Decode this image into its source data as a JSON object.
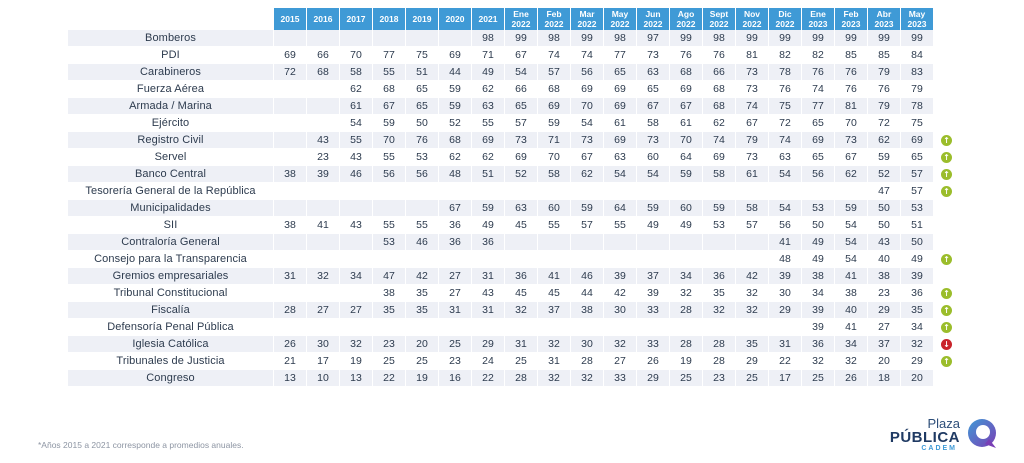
{
  "chart_data": {
    "type": "table",
    "columns": [
      [
        "2015"
      ],
      [
        "2016"
      ],
      [
        "2017"
      ],
      [
        "2018"
      ],
      [
        "2019"
      ],
      [
        "2020"
      ],
      [
        "2021"
      ],
      [
        "Ene",
        "2022"
      ],
      [
        "Feb",
        "2022"
      ],
      [
        "Mar",
        "2022"
      ],
      [
        "May",
        "2022"
      ],
      [
        "Jun",
        "2022"
      ],
      [
        "Ago",
        "2022"
      ],
      [
        "Sept",
        "2022"
      ],
      [
        "Nov",
        "2022"
      ],
      [
        "Dic",
        "2022"
      ],
      [
        "Ene",
        "2023"
      ],
      [
        "Feb",
        "2023"
      ],
      [
        "Abr",
        "2023"
      ],
      [
        "May",
        "2023"
      ]
    ],
    "rows": [
      {
        "label": "Bomberos",
        "values": [
          "",
          "",
          "",
          "",
          "",
          "",
          "98",
          "99",
          "98",
          "99",
          "98",
          "97",
          "99",
          "98",
          "99",
          "99",
          "99",
          "99",
          "99",
          "99"
        ],
        "trend": ""
      },
      {
        "label": "PDI",
        "values": [
          "69",
          "66",
          "70",
          "77",
          "75",
          "69",
          "71",
          "67",
          "74",
          "74",
          "77",
          "73",
          "76",
          "76",
          "81",
          "82",
          "82",
          "85",
          "85",
          "84"
        ],
        "trend": ""
      },
      {
        "label": "Carabineros",
        "values": [
          "72",
          "68",
          "58",
          "55",
          "51",
          "44",
          "49",
          "54",
          "57",
          "56",
          "65",
          "63",
          "68",
          "66",
          "73",
          "78",
          "76",
          "76",
          "79",
          "83"
        ],
        "trend": ""
      },
      {
        "label": "Fuerza Aérea",
        "values": [
          "",
          "",
          "62",
          "68",
          "65",
          "59",
          "62",
          "66",
          "68",
          "69",
          "69",
          "65",
          "69",
          "68",
          "73",
          "76",
          "74",
          "76",
          "76",
          "79"
        ],
        "trend": ""
      },
      {
        "label": "Armada / Marina",
        "values": [
          "",
          "",
          "61",
          "67",
          "65",
          "59",
          "63",
          "65",
          "69",
          "70",
          "69",
          "67",
          "67",
          "68",
          "74",
          "75",
          "77",
          "81",
          "79",
          "78"
        ],
        "trend": ""
      },
      {
        "label": "Ejército",
        "values": [
          "",
          "",
          "54",
          "59",
          "50",
          "52",
          "55",
          "57",
          "59",
          "54",
          "61",
          "58",
          "61",
          "62",
          "67",
          "72",
          "65",
          "70",
          "72",
          "75"
        ],
        "trend": ""
      },
      {
        "label": "Registro Civil",
        "values": [
          "",
          "43",
          "55",
          "70",
          "76",
          "68",
          "69",
          "73",
          "71",
          "73",
          "69",
          "73",
          "70",
          "74",
          "79",
          "74",
          "69",
          "73",
          "62",
          "69"
        ],
        "trend": "up"
      },
      {
        "label": "Servel",
        "values": [
          "",
          "23",
          "43",
          "55",
          "53",
          "62",
          "62",
          "69",
          "70",
          "67",
          "63",
          "60",
          "64",
          "69",
          "73",
          "63",
          "65",
          "67",
          "59",
          "65"
        ],
        "trend": "up"
      },
      {
        "label": "Banco Central",
        "values": [
          "38",
          "39",
          "46",
          "56",
          "56",
          "48",
          "51",
          "52",
          "58",
          "62",
          "54",
          "54",
          "59",
          "58",
          "61",
          "54",
          "56",
          "62",
          "52",
          "57"
        ],
        "trend": "up"
      },
      {
        "label": "Tesorería General de la República",
        "values": [
          "",
          "",
          "",
          "",
          "",
          "",
          "",
          "",
          "",
          "",
          "",
          "",
          "",
          "",
          "",
          "",
          "",
          "",
          "47",
          "57"
        ],
        "trend": "up"
      },
      {
        "label": "Municipalidades",
        "values": [
          "",
          "",
          "",
          "",
          "",
          "67",
          "59",
          "63",
          "60",
          "59",
          "64",
          "59",
          "60",
          "59",
          "58",
          "54",
          "53",
          "59",
          "50",
          "53"
        ],
        "trend": ""
      },
      {
        "label": "SII",
        "values": [
          "38",
          "41",
          "43",
          "55",
          "55",
          "36",
          "49",
          "45",
          "55",
          "57",
          "55",
          "49",
          "49",
          "53",
          "57",
          "56",
          "50",
          "54",
          "50",
          "51"
        ],
        "trend": ""
      },
      {
        "label": "Contraloría General",
        "values": [
          "",
          "",
          "",
          "53",
          "46",
          "36",
          "36",
          "",
          "",
          "",
          "",
          "",
          "",
          "",
          "",
          "41",
          "49",
          "54",
          "43",
          "50"
        ],
        "trend": ""
      },
      {
        "label": "Consejo para la Transparencia",
        "values": [
          "",
          "",
          "",
          "",
          "",
          "",
          "",
          "",
          "",
          "",
          "",
          "",
          "",
          "",
          "",
          "48",
          "49",
          "54",
          "40",
          "49"
        ],
        "trend": "up"
      },
      {
        "label": "Gremios empresariales",
        "values": [
          "31",
          "32",
          "34",
          "47",
          "42",
          "27",
          "31",
          "36",
          "41",
          "46",
          "39",
          "37",
          "34",
          "36",
          "42",
          "39",
          "38",
          "41",
          "38",
          "39"
        ],
        "trend": ""
      },
      {
        "label": "Tribunal Constitucional",
        "values": [
          "",
          "",
          "",
          "38",
          "35",
          "27",
          "43",
          "45",
          "45",
          "44",
          "42",
          "39",
          "32",
          "35",
          "32",
          "30",
          "34",
          "38",
          "23",
          "36"
        ],
        "trend": "up"
      },
      {
        "label": "Fiscalía",
        "values": [
          "28",
          "27",
          "27",
          "35",
          "35",
          "31",
          "31",
          "32",
          "37",
          "38",
          "30",
          "33",
          "28",
          "32",
          "32",
          "29",
          "39",
          "40",
          "29",
          "35"
        ],
        "trend": "up"
      },
      {
        "label": "Defensoría Penal Pública",
        "values": [
          "",
          "",
          "",
          "",
          "",
          "",
          "",
          "",
          "",
          "",
          "",
          "",
          "",
          "",
          "",
          "",
          "39",
          "41",
          "27",
          "34"
        ],
        "trend": "up"
      },
      {
        "label": "Iglesia Católica",
        "values": [
          "26",
          "30",
          "32",
          "23",
          "20",
          "25",
          "29",
          "31",
          "32",
          "30",
          "32",
          "33",
          "28",
          "28",
          "35",
          "31",
          "36",
          "34",
          "37",
          "32"
        ],
        "trend": "down"
      },
      {
        "label": "Tribunales de Justicia",
        "values": [
          "21",
          "17",
          "19",
          "25",
          "25",
          "23",
          "24",
          "25",
          "31",
          "28",
          "27",
          "26",
          "19",
          "28",
          "29",
          "22",
          "32",
          "32",
          "20",
          "29"
        ],
        "trend": "up"
      },
      {
        "label": "Congreso",
        "values": [
          "13",
          "10",
          "13",
          "22",
          "19",
          "16",
          "22",
          "28",
          "32",
          "32",
          "33",
          "29",
          "25",
          "23",
          "25",
          "17",
          "25",
          "26",
          "18",
          "20"
        ],
        "trend": ""
      }
    ],
    "trend_colors": {
      "up": "#9bbd2b",
      "down": "#c9242b"
    },
    "header_color": "#3f9ad6"
  },
  "footnote": "*Años 2015 a 2021 corresponde a promedios anuales.",
  "logo": {
    "line1": "Plaza",
    "line2": "PÚBLICA",
    "line3": "CADEM"
  }
}
